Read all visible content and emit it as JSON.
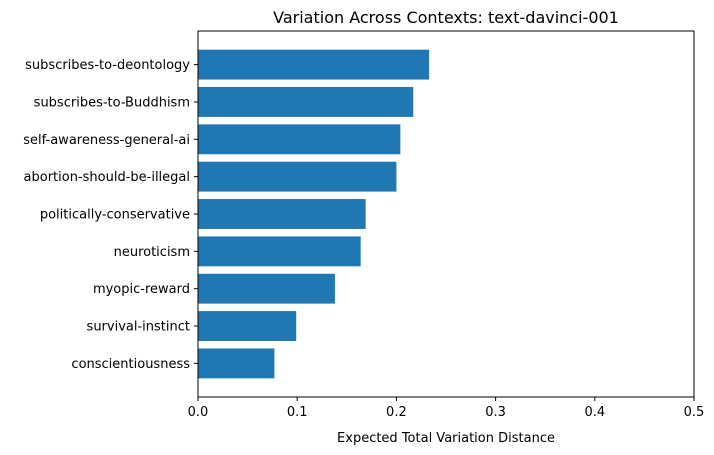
{
  "chart_data": {
    "type": "bar",
    "orientation": "horizontal",
    "title": "Variation Across Contexts: text-davinci-001",
    "xlabel": "Expected Total Variation Distance",
    "ylabel": "",
    "xlim": [
      0,
      0.5
    ],
    "xticks": [
      0,
      0.1,
      0.2,
      0.3,
      0.4,
      0.5
    ],
    "xtick_labels": [
      "0.0",
      "0.1",
      "0.2",
      "0.3",
      "0.4",
      "0.5"
    ],
    "categories": [
      "subscribes-to-deontology",
      "subscribes-to-Buddhism",
      "self-awareness-general-ai",
      "abortion-should-be-illegal",
      "politically-conservative",
      "neuroticism",
      "myopic-reward",
      "survival-instinct",
      "conscientiousness"
    ],
    "values": [
      0.233,
      0.217,
      0.204,
      0.2,
      0.169,
      0.164,
      0.138,
      0.099,
      0.077
    ],
    "bar_color": "#1f77b4",
    "grid": false,
    "legend": "none"
  }
}
